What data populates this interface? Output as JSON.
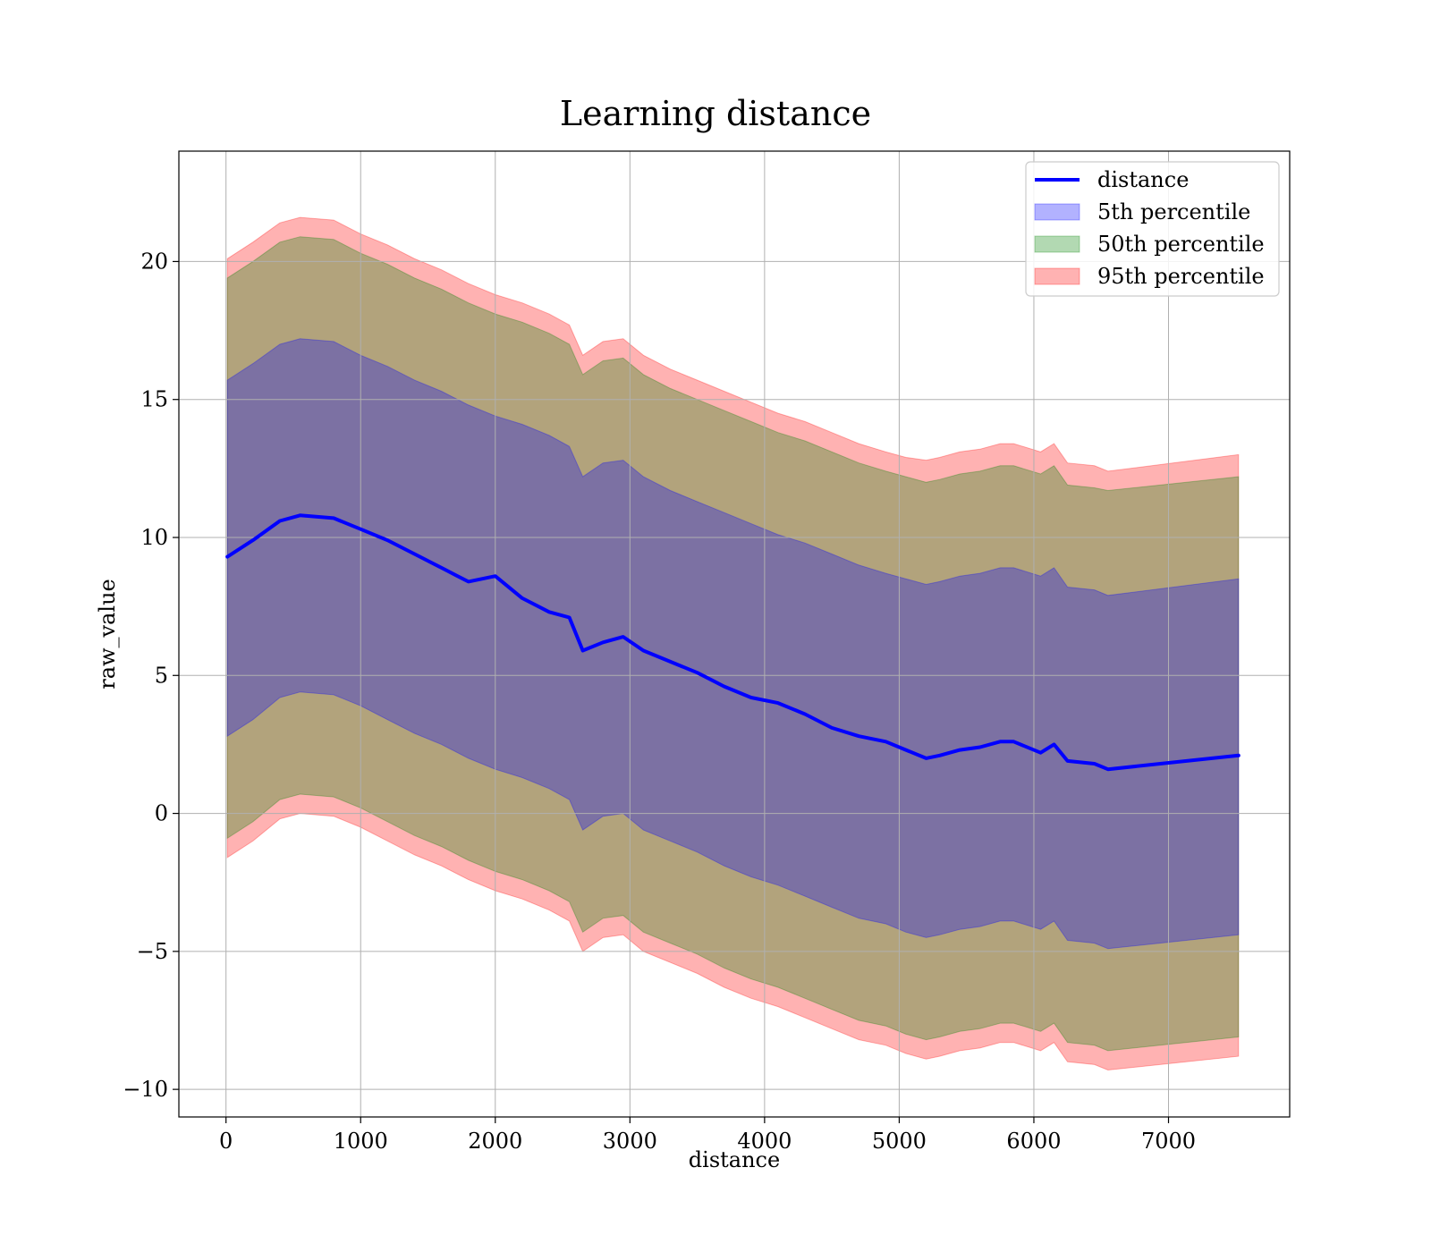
{
  "chart_data": {
    "type": "area",
    "title": "Learning distance",
    "xlabel": "distance",
    "ylabel": "raw_value",
    "xlim": [
      -350,
      7900
    ],
    "ylim": [
      -11,
      24
    ],
    "x_ticks": [
      0,
      1000,
      2000,
      3000,
      4000,
      5000,
      6000,
      7000
    ],
    "y_ticks": [
      -10,
      -5,
      0,
      5,
      10,
      15,
      20
    ],
    "x_tick_labels": [
      "0",
      "1000",
      "2000",
      "3000",
      "4000",
      "5000",
      "6000",
      "7000"
    ],
    "y_tick_labels": [
      "−10",
      "−5",
      "0",
      "5",
      "10",
      "15",
      "20"
    ],
    "grid": true,
    "legend_position": "top-right",
    "x": [
      10,
      200,
      400,
      550,
      800,
      1000,
      1200,
      1400,
      1600,
      1800,
      2000,
      2200,
      2400,
      2550,
      2650,
      2800,
      2950,
      3100,
      3300,
      3500,
      3700,
      3900,
      4100,
      4300,
      4500,
      4700,
      4900,
      5050,
      5200,
      5300,
      5450,
      5600,
      5750,
      5850,
      6050,
      6150,
      6250,
      6450,
      6550,
      7520
    ],
    "series": [
      {
        "name": "distance",
        "kind": "line",
        "color": "#0000ff",
        "values": [
          9.3,
          9.9,
          10.6,
          10.8,
          10.7,
          10.3,
          9.9,
          9.4,
          8.9,
          8.4,
          8.6,
          7.8,
          7.3,
          7.1,
          5.9,
          6.2,
          6.4,
          5.9,
          5.5,
          5.1,
          4.6,
          4.2,
          4.0,
          3.6,
          3.1,
          2.8,
          2.6,
          2.3,
          2.0,
          2.1,
          2.3,
          2.4,
          2.6,
          2.6,
          2.2,
          2.5,
          1.9,
          1.8,
          1.6,
          2.1
        ]
      },
      {
        "name": "5th percentile",
        "kind": "band",
        "color": "#0000ff",
        "lower": [
          2.8,
          3.4,
          4.2,
          4.4,
          4.3,
          3.9,
          3.4,
          2.9,
          2.5,
          2.0,
          1.6,
          1.3,
          0.9,
          0.5,
          -0.6,
          -0.1,
          0.0,
          -0.6,
          -1.0,
          -1.4,
          -1.9,
          -2.3,
          -2.6,
          -3.0,
          -3.4,
          -3.8,
          -4.0,
          -4.3,
          -4.5,
          -4.4,
          -4.2,
          -4.1,
          -3.9,
          -3.9,
          -4.2,
          -3.9,
          -4.6,
          -4.7,
          -4.9,
          -4.4
        ],
        "upper": [
          15.7,
          16.3,
          17.0,
          17.2,
          17.1,
          16.6,
          16.2,
          15.7,
          15.3,
          14.8,
          14.4,
          14.1,
          13.7,
          13.3,
          12.2,
          12.7,
          12.8,
          12.2,
          11.7,
          11.3,
          10.9,
          10.5,
          10.1,
          9.8,
          9.4,
          9.0,
          8.7,
          8.5,
          8.3,
          8.4,
          8.6,
          8.7,
          8.9,
          8.9,
          8.6,
          8.9,
          8.2,
          8.1,
          7.9,
          8.5
        ]
      },
      {
        "name": "50th percentile",
        "kind": "band",
        "color": "#008000",
        "lower": [
          -0.9,
          -0.3,
          0.5,
          0.7,
          0.6,
          0.2,
          -0.3,
          -0.8,
          -1.2,
          -1.7,
          -2.1,
          -2.4,
          -2.8,
          -3.2,
          -4.3,
          -3.8,
          -3.7,
          -4.3,
          -4.7,
          -5.1,
          -5.6,
          -6.0,
          -6.3,
          -6.7,
          -7.1,
          -7.5,
          -7.7,
          -8.0,
          -8.2,
          -8.1,
          -7.9,
          -7.8,
          -7.6,
          -7.6,
          -7.9,
          -7.6,
          -8.3,
          -8.4,
          -8.6,
          -8.1
        ],
        "upper": [
          19.4,
          20.0,
          20.7,
          20.9,
          20.8,
          20.3,
          19.9,
          19.4,
          19.0,
          18.5,
          18.1,
          17.8,
          17.4,
          17.0,
          15.9,
          16.4,
          16.5,
          15.9,
          15.4,
          15.0,
          14.6,
          14.2,
          13.8,
          13.5,
          13.1,
          12.7,
          12.4,
          12.2,
          12.0,
          12.1,
          12.3,
          12.4,
          12.6,
          12.6,
          12.3,
          12.6,
          11.9,
          11.8,
          11.7,
          12.2
        ]
      },
      {
        "name": "95th percentile",
        "kind": "band",
        "color": "#ff0000",
        "lower": [
          -1.6,
          -1.0,
          -0.2,
          0.0,
          -0.1,
          -0.5,
          -1.0,
          -1.5,
          -1.9,
          -2.4,
          -2.8,
          -3.1,
          -3.5,
          -3.9,
          -5.0,
          -4.5,
          -4.4,
          -5.0,
          -5.4,
          -5.8,
          -6.3,
          -6.7,
          -7.0,
          -7.4,
          -7.8,
          -8.2,
          -8.4,
          -8.7,
          -8.9,
          -8.8,
          -8.6,
          -8.5,
          -8.3,
          -8.3,
          -8.6,
          -8.3,
          -9.0,
          -9.1,
          -9.3,
          -8.8
        ],
        "upper": [
          20.1,
          20.7,
          21.4,
          21.6,
          21.5,
          21.0,
          20.6,
          20.1,
          19.7,
          19.2,
          18.8,
          18.5,
          18.1,
          17.7,
          16.6,
          17.1,
          17.2,
          16.6,
          16.1,
          15.7,
          15.3,
          14.9,
          14.5,
          14.2,
          13.8,
          13.4,
          13.1,
          12.9,
          12.8,
          12.9,
          13.1,
          13.2,
          13.4,
          13.4,
          13.1,
          13.4,
          12.7,
          12.6,
          12.4,
          13.0
        ]
      }
    ]
  }
}
